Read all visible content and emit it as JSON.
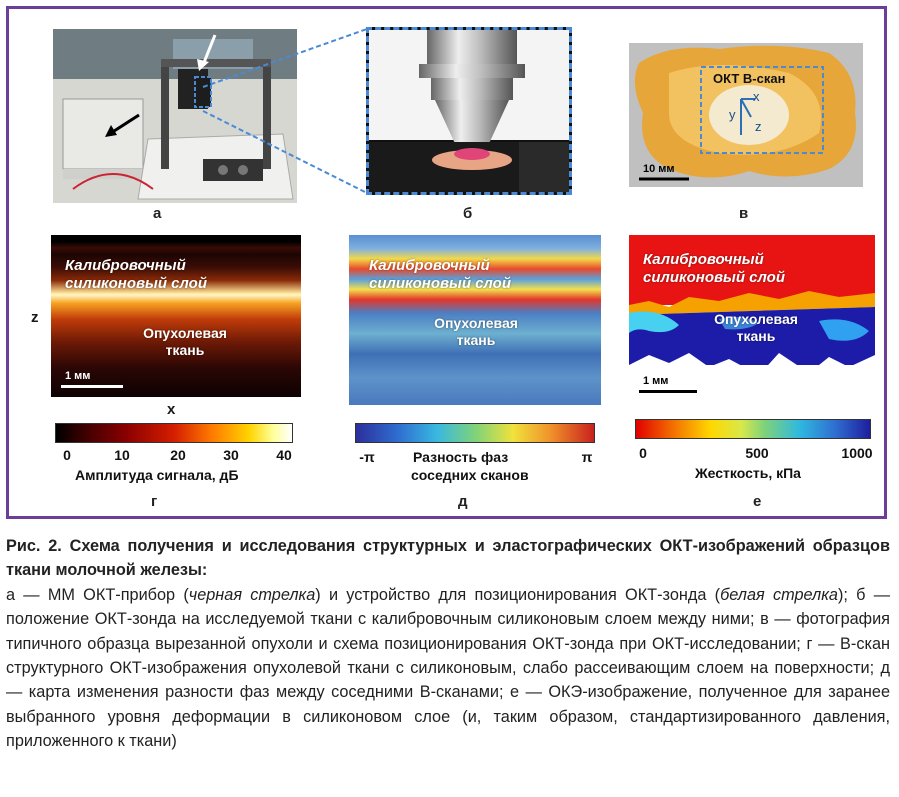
{
  "panels": {
    "a": {
      "letter": "а"
    },
    "b": {
      "letter": "б"
    },
    "v": {
      "letter": "в",
      "oct_label": "ОКТ В-скан",
      "axis_x": "x",
      "axis_y": "y",
      "axis_z": "z",
      "scale": "10 мм"
    },
    "g": {
      "letter": "г",
      "layer_label": "Калибровочный силиконовый слой",
      "tissue_label": "Опухолевая ткань",
      "axis_z": "z",
      "axis_x": "x",
      "scale": "1 мм",
      "colorbar": {
        "ticks": [
          "0",
          "10",
          "20",
          "30",
          "40"
        ],
        "label": "Амплитуда сигнала, дБ"
      }
    },
    "d": {
      "letter": "д",
      "layer_label": "Калибровочный силиконовый слой",
      "tissue_label": "Опухолевая ткань",
      "colorbar": {
        "ticks": [
          "-π",
          "π"
        ],
        "label_line1": "Разность фаз",
        "label_line2": "соседних сканов"
      }
    },
    "e": {
      "letter": "е",
      "layer_label": "Калибровочный силиконовый слой",
      "tissue_label": "Опухолевая ткань",
      "scale": "1 мм",
      "colorbar": {
        "ticks": [
          "0",
          "500",
          "1000"
        ],
        "label": "Жесткость, кПа"
      }
    }
  },
  "caption": {
    "title": "Рис. 2. Схема получения и исследования структурных и эластографических ОКТ-изображений образцов ткани молочной железы:",
    "s1": "а — ММ ОКТ-прибор (",
    "s1i": "черная стрелка",
    "s2": ") и устройство для позиционирования ОКТ-зонда (",
    "s2i": "белая стрелка",
    "s3": "); б — положение ОКТ-зонда на исследуемой ткани с калибровочным силиконовым слоем между ними; в — фотография типичного образца вырезанной опухоли и схема позиционирования ОКТ-зонда при ОКТ-исследовании; г — В-скан структурного ОКТ-изображения опухолевой ткани с силиконовым, слабо рассеивающим слоем на поверхности; д — карта изменения разности фаз между соседними В-сканами; е — ОКЭ-изображение, полученное для заранее выбранного уровня деформации в силиконовом слое (и, таким образом, стандартизированного давления, приложенного к ткани)"
  }
}
